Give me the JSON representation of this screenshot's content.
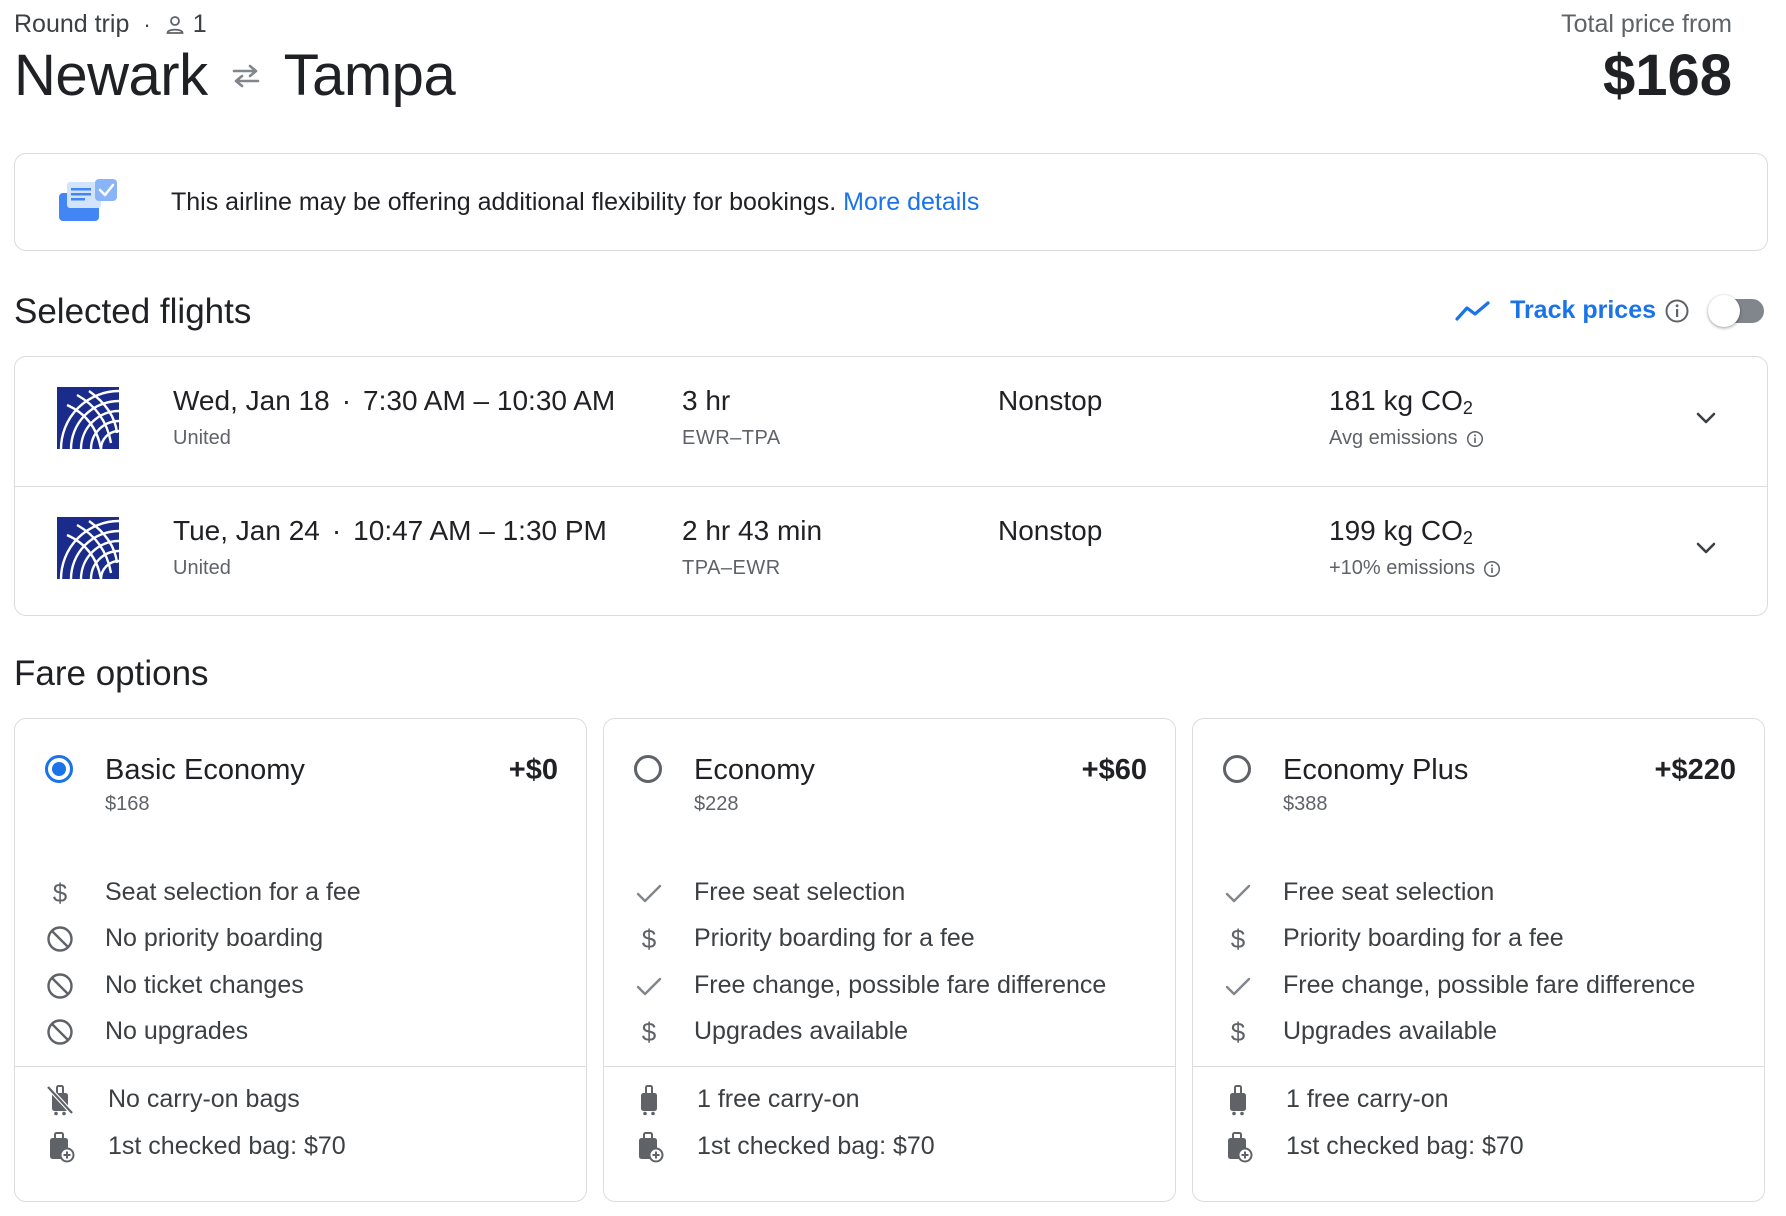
{
  "header": {
    "trip_type": "Round trip",
    "passenger_count": "1",
    "origin": "Newark",
    "destination": "Tampa",
    "total_label": "Total price from",
    "total_price": "$168"
  },
  "banner": {
    "text": "This airline may be offering additional flexibility for bookings.",
    "link": "More details"
  },
  "selected_flights": {
    "title": "Selected flights",
    "track_prices_label": "Track prices",
    "track_prices_on": false,
    "flights": [
      {
        "date": "Wed, Jan 18",
        "times": "7:30 AM – 10:30 AM",
        "airline": "United",
        "duration": "3 hr",
        "route": "EWR–TPA",
        "stops": "Nonstop",
        "co2_value": "181 kg CO",
        "co2_sub": "2",
        "emissions": "Avg emissions"
      },
      {
        "date": "Tue, Jan 24",
        "times": "10:47 AM – 1:30 PM",
        "airline": "United",
        "duration": "2 hr 43 min",
        "route": "TPA–EWR",
        "stops": "Nonstop",
        "co2_value": "199 kg CO",
        "co2_sub": "2",
        "emissions": "+10% emissions"
      }
    ]
  },
  "fare_options": {
    "title": "Fare options",
    "fares": [
      {
        "name": "Basic Economy",
        "delta": "+$0",
        "total": "$168",
        "selected": true,
        "features": [
          {
            "icon": "dollar-icon",
            "text": "Seat selection for a fee"
          },
          {
            "icon": "not-allowed-icon",
            "text": "No priority boarding"
          },
          {
            "icon": "not-allowed-icon",
            "text": "No ticket changes"
          },
          {
            "icon": "not-allowed-icon",
            "text": "No upgrades"
          }
        ],
        "bags": [
          {
            "icon": "no-luggage-icon",
            "text": "No carry-on bags"
          },
          {
            "icon": "checked-bag-icon",
            "text": "1st checked bag: $70"
          }
        ]
      },
      {
        "name": "Economy",
        "delta": "+$60",
        "total": "$228",
        "selected": false,
        "features": [
          {
            "icon": "check-icon",
            "text": "Free seat selection"
          },
          {
            "icon": "dollar-icon",
            "text": "Priority boarding for a fee"
          },
          {
            "icon": "check-icon",
            "text": "Free change, possible fare difference"
          },
          {
            "icon": "dollar-icon",
            "text": "Upgrades available"
          }
        ],
        "bags": [
          {
            "icon": "carry-on-icon",
            "text": "1 free carry-on"
          },
          {
            "icon": "checked-bag-icon",
            "text": "1st checked bag: $70"
          }
        ]
      },
      {
        "name": "Economy Plus",
        "delta": "+$220",
        "total": "$388",
        "selected": false,
        "features": [
          {
            "icon": "check-icon",
            "text": "Free seat selection"
          },
          {
            "icon": "dollar-icon",
            "text": "Priority boarding for a fee"
          },
          {
            "icon": "check-icon",
            "text": "Free change, possible fare difference"
          },
          {
            "icon": "dollar-icon",
            "text": "Upgrades available"
          }
        ],
        "bags": [
          {
            "icon": "carry-on-icon",
            "text": "1 free carry-on"
          },
          {
            "icon": "checked-bag-icon",
            "text": "1st checked bag: $70"
          }
        ]
      }
    ]
  },
  "colors": {
    "accent": "#1a73e8",
    "text_primary": "#202124",
    "text_secondary": "#5f6368",
    "border": "#dadce0",
    "united_blue": "#1a2b8c"
  }
}
